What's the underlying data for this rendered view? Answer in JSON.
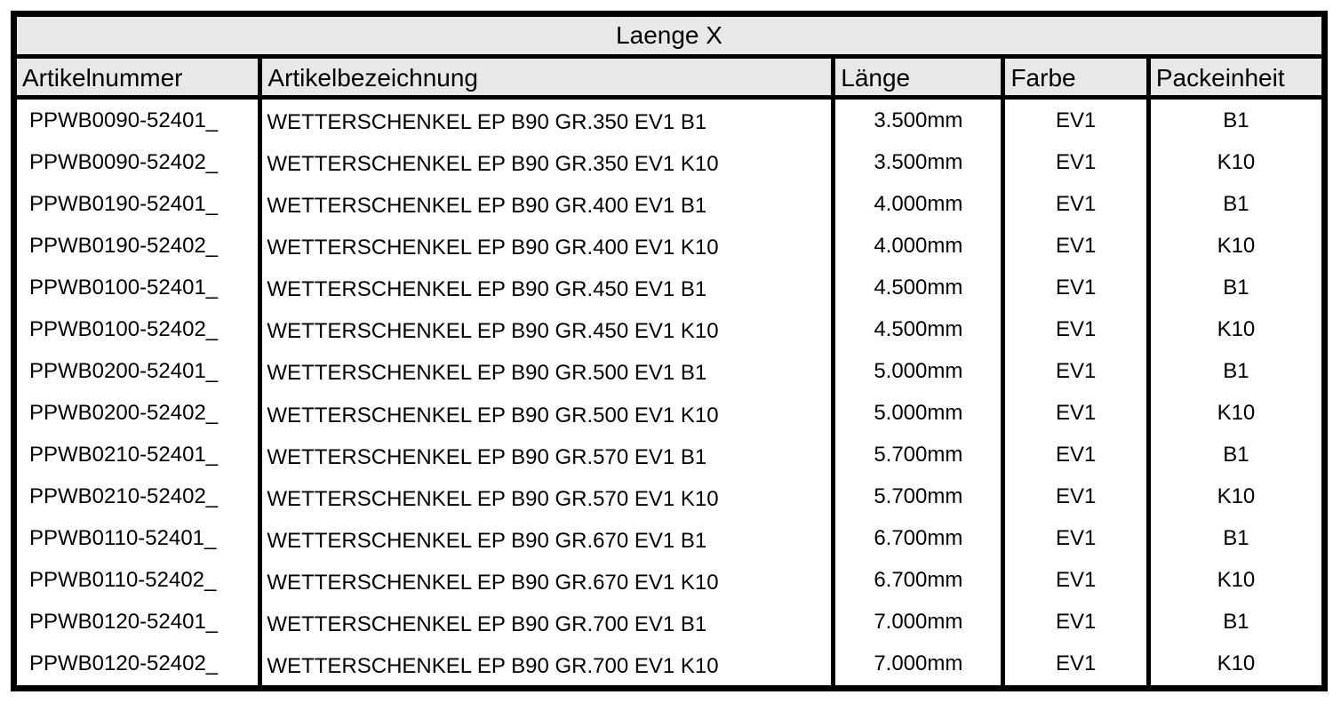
{
  "title": "Laenge X",
  "colors": {
    "header_bg": "#e8e8e8",
    "row_bg": "#ffffff",
    "border": "#000000",
    "text": "#000000"
  },
  "table": {
    "columns": [
      {
        "key": "artikelnummer",
        "label": "Artikelnummer"
      },
      {
        "key": "artikelbezeichnung",
        "label": "Artikelbezeichnung"
      },
      {
        "key": "laenge",
        "label": "Länge"
      },
      {
        "key": "farbe",
        "label": "Farbe"
      },
      {
        "key": "packeinheit",
        "label": "Packeinheit"
      }
    ],
    "rows": [
      {
        "artikelnummer": "PPWB0090-52401_",
        "artikelbezeichnung": "WETTERSCHENKEL EP B90 GR.350 EV1 B1",
        "laenge": "3.500mm",
        "farbe": "EV1",
        "packeinheit": "B1"
      },
      {
        "artikelnummer": "PPWB0090-52402_",
        "artikelbezeichnung": "WETTERSCHENKEL EP B90 GR.350 EV1 K10",
        "laenge": "3.500mm",
        "farbe": "EV1",
        "packeinheit": "K10"
      },
      {
        "artikelnummer": "PPWB0190-52401_",
        "artikelbezeichnung": "WETTERSCHENKEL EP B90 GR.400 EV1 B1",
        "laenge": "4.000mm",
        "farbe": "EV1",
        "packeinheit": "B1"
      },
      {
        "artikelnummer": "PPWB0190-52402_",
        "artikelbezeichnung": "WETTERSCHENKEL EP B90 GR.400 EV1 K10",
        "laenge": "4.000mm",
        "farbe": "EV1",
        "packeinheit": "K10"
      },
      {
        "artikelnummer": "PPWB0100-52401_",
        "artikelbezeichnung": "WETTERSCHENKEL EP B90 GR.450 EV1 B1",
        "laenge": "4.500mm",
        "farbe": "EV1",
        "packeinheit": "B1"
      },
      {
        "artikelnummer": "PPWB0100-52402_",
        "artikelbezeichnung": "WETTERSCHENKEL EP B90 GR.450 EV1 K10",
        "laenge": "4.500mm",
        "farbe": "EV1",
        "packeinheit": "K10"
      },
      {
        "artikelnummer": "PPWB0200-52401_",
        "artikelbezeichnung": "WETTERSCHENKEL EP B90 GR.500 EV1 B1",
        "laenge": "5.000mm",
        "farbe": "EV1",
        "packeinheit": "B1"
      },
      {
        "artikelnummer": "PPWB0200-52402_",
        "artikelbezeichnung": "WETTERSCHENKEL EP B90 GR.500 EV1 K10",
        "laenge": "5.000mm",
        "farbe": "EV1",
        "packeinheit": "K10"
      },
      {
        "artikelnummer": "PPWB0210-52401_",
        "artikelbezeichnung": "WETTERSCHENKEL EP B90 GR.570 EV1 B1",
        "laenge": "5.700mm",
        "farbe": "EV1",
        "packeinheit": "B1"
      },
      {
        "artikelnummer": "PPWB0210-52402_",
        "artikelbezeichnung": "WETTERSCHENKEL EP B90 GR.570 EV1 K10",
        "laenge": "5.700mm",
        "farbe": "EV1",
        "packeinheit": "K10"
      },
      {
        "artikelnummer": "PPWB0110-52401_",
        "artikelbezeichnung": "WETTERSCHENKEL EP B90 GR.670 EV1 B1",
        "laenge": "6.700mm",
        "farbe": "EV1",
        "packeinheit": "B1"
      },
      {
        "artikelnummer": "PPWB0110-52402_",
        "artikelbezeichnung": "WETTERSCHENKEL EP B90 GR.670 EV1 K10",
        "laenge": "6.700mm",
        "farbe": "EV1",
        "packeinheit": "K10"
      },
      {
        "artikelnummer": "PPWB0120-52401_",
        "artikelbezeichnung": "WETTERSCHENKEL EP B90 GR.700 EV1 B1",
        "laenge": "7.000mm",
        "farbe": "EV1",
        "packeinheit": "B1"
      },
      {
        "artikelnummer": "PPWB0120-52402_",
        "artikelbezeichnung": "WETTERSCHENKEL EP B90 GR.700 EV1 K10",
        "laenge": "7.000mm",
        "farbe": "EV1",
        "packeinheit": "K10"
      }
    ]
  }
}
